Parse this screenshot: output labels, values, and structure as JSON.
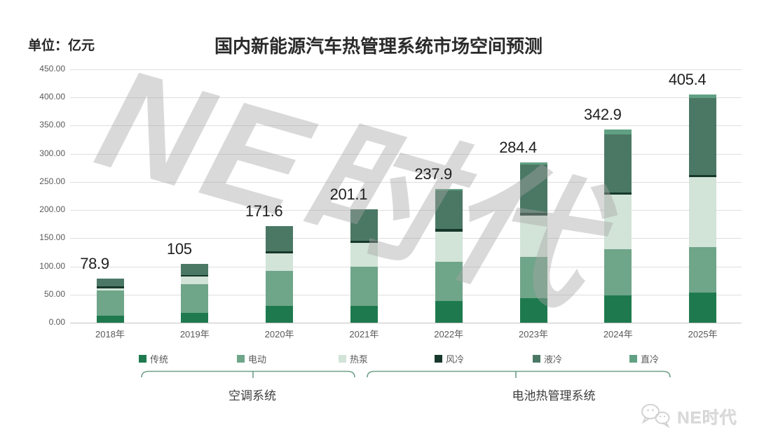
{
  "header": {
    "unit_label": "单位：亿元",
    "title": "国内新能源汽车热管理系统市场空间预测"
  },
  "watermark": {
    "text": "NE时代"
  },
  "footer": {
    "brand": "NE时代",
    "icon": "wechat-bubbles-icon"
  },
  "chart_data": {
    "type": "bar",
    "stacked": true,
    "title": "国内新能源汽车热管理系统市场空间预测",
    "unit": "亿元",
    "categories": [
      "2018年",
      "2019年",
      "2020年",
      "2021年",
      "2022年",
      "2023年",
      "2024年",
      "2025年"
    ],
    "series": [
      {
        "name": "传统",
        "color": "#1e7a4e",
        "group": "空调系统",
        "values": [
          12,
          18,
          30,
          30,
          38,
          43,
          48,
          54
        ]
      },
      {
        "name": "电动",
        "color": "#6fa589",
        "group": "空调系统",
        "values": [
          45,
          50,
          62,
          70,
          70,
          74,
          82,
          80
        ]
      },
      {
        "name": "热泵",
        "color": "#d2e3d8",
        "group": "空调系统",
        "values": [
          4,
          14,
          31,
          42,
          54,
          73,
          97,
          124
        ]
      },
      {
        "name": "风冷",
        "color": "#17382b",
        "group": "电池热管理系统",
        "values": [
          4,
          3,
          4,
          4,
          4,
          5,
          4,
          4
        ]
      },
      {
        "name": "液冷",
        "color": "#4b7865",
        "group": "电池热管理系统",
        "values": [
          13.9,
          20,
          44.6,
          55.1,
          68.9,
          85.4,
          103.9,
          137.4
        ]
      },
      {
        "name": "直冷",
        "color": "#61a183",
        "group": "电池热管理系统",
        "values": [
          0,
          0,
          0,
          0,
          3,
          4,
          8,
          6
        ]
      }
    ],
    "totals": [
      "78.9",
      "105",
      "171.6",
      "201.1",
      "237.9",
      "284.4",
      "342.9",
      "405.4"
    ],
    "ylim": [
      0,
      450
    ],
    "yticks": [
      "0.00",
      "50.00",
      "100.00",
      "150.00",
      "200.00",
      "250.00",
      "300.00",
      "350.00",
      "400.00",
      "450.00"
    ],
    "grid": true,
    "legend_position": "bottom",
    "groups": [
      {
        "label": "空调系统",
        "series": [
          "传统",
          "电动",
          "热泵"
        ]
      },
      {
        "label": "电池热管理系统",
        "series": [
          "风冷",
          "液冷",
          "直冷"
        ]
      }
    ]
  }
}
